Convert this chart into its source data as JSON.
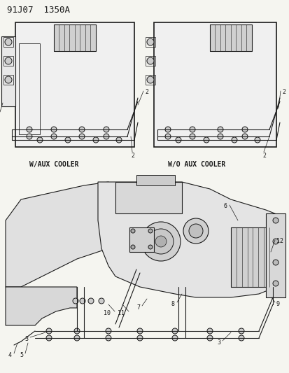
{
  "title": "91J07  1350A",
  "bg_color": "#f5f5f0",
  "lc": "#1a1a1a",
  "label1": "W/AUX COOLER",
  "label2": "W/O AUX COOLER",
  "header_fs": 9,
  "label_fs": 7,
  "ann_fs": 6
}
